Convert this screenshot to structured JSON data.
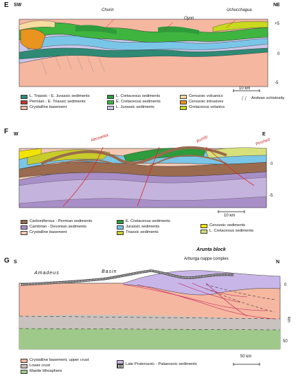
{
  "panel_e": {
    "letter": "E",
    "left_dir": "SW",
    "right_dir": "NE",
    "places": [
      "Churin",
      "Oyon",
      "Uchucchagua"
    ],
    "axis_ticks": [
      "+5",
      "0",
      "-5"
    ],
    "scale_label": "10 km",
    "legend": [
      {
        "label": "L. Triassic - E. Jurassic sediments",
        "color": "#2e8a74"
      },
      {
        "label": "Permian - E. Triassic sediments",
        "color": "#c0392b"
      },
      {
        "label": "Crystalline basement",
        "color": "#f5b7a0"
      },
      {
        "label": "L. Cretaceous sediments",
        "color": "#2e9b3c"
      },
      {
        "label": "E. Cretaceous sediments",
        "color": "#3fb53f"
      },
      {
        "label": "L. Jurassic sediments",
        "color": "#c9c6e8"
      },
      {
        "label": "Cenozoic volcanics",
        "color": "#f7dca0"
      },
      {
        "label": "Cenozoic intrusives",
        "color": "#e8941f"
      },
      {
        "label": "Cretaceous volanics",
        "color": "#c8d91e"
      },
      {
        "label": "Andean schistosity",
        "color": "#666666"
      }
    ]
  },
  "panel_f": {
    "letter": "F",
    "left_dir": "W",
    "right_dir": "E",
    "faults": [
      "Abosaska",
      "Rundy",
      "Pinshed"
    ],
    "axis_ticks": [
      "0",
      "-5"
    ],
    "scale_label": "10 km",
    "legend": [
      {
        "label": "Carboniferous - Permian sediments",
        "color": "#9a6b4f"
      },
      {
        "label": "Cambrian - Devonian sediments",
        "color": "#a98fc8"
      },
      {
        "label": "Crystalline basement",
        "color": "#f3c9b2"
      },
      {
        "label": "E. Cretaceous sediments",
        "color": "#2e9b3c"
      },
      {
        "label": "Jurassic sediments",
        "color": "#7ac6e8"
      },
      {
        "label": "Triassic sediments",
        "color": "#c8cc2a"
      },
      {
        "label": "Cenozoic sediments",
        "color": "#f3e400"
      },
      {
        "label": "L. Cretaceous sediments",
        "color": "#d7e07a"
      }
    ]
  },
  "panel_g": {
    "letter": "G",
    "left_dir": "S",
    "right_dir": "N",
    "region_top": "Arunta block",
    "complex": "Arltunga nappe complex",
    "basin_left": "Amadeus",
    "basin_right": "Basin",
    "axis_ticks": [
      "0",
      "km",
      "50"
    ],
    "scale_label": "50 km",
    "legend": [
      {
        "label": "Crystalline basement, upper crust",
        "color": "#f5b7a0"
      },
      {
        "label": "Lower crust",
        "color": "#c9c2bf"
      },
      {
        "label": "Mantle lithosphere",
        "color": "#9fc98a"
      },
      {
        "label": "Late Proterozoic - Palaeozoic sediments",
        "color": "#c8b6e8"
      }
    ]
  }
}
